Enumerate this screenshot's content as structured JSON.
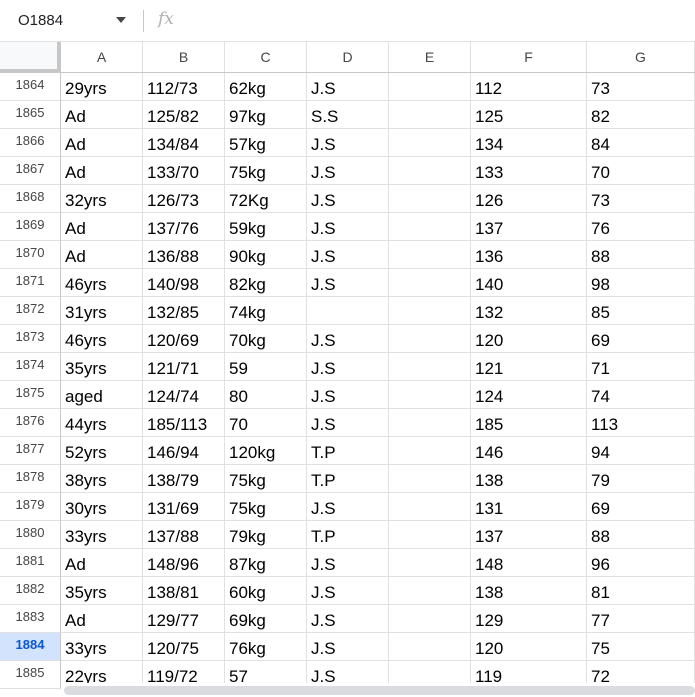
{
  "formula_bar": {
    "name_box": "O1884",
    "fx_label": "fx",
    "formula": ""
  },
  "columns": [
    "A",
    "B",
    "C",
    "D",
    "E",
    "F",
    "G"
  ],
  "selected_row": "1884",
  "rows": [
    {
      "n": "1864",
      "cells": [
        "29yrs",
        "112/73",
        "62kg",
        "J.S",
        "",
        "112",
        "73"
      ]
    },
    {
      "n": "1865",
      "cells": [
        "Ad",
        "125/82",
        "97kg",
        "S.S",
        "",
        "125",
        "82"
      ]
    },
    {
      "n": "1866",
      "cells": [
        "Ad",
        "134/84",
        "57kg",
        "J.S",
        "",
        "134",
        "84"
      ]
    },
    {
      "n": "1867",
      "cells": [
        "Ad",
        "133/70",
        "75kg",
        "J.S",
        "",
        "133",
        "70"
      ]
    },
    {
      "n": "1868",
      "cells": [
        "32yrs",
        "126/73",
        "72Kg",
        "J.S",
        "",
        "126",
        "73"
      ]
    },
    {
      "n": "1869",
      "cells": [
        "Ad",
        "137/76",
        "59kg",
        "J.S",
        "",
        "137",
        "76"
      ]
    },
    {
      "n": "1870",
      "cells": [
        "Ad",
        "136/88",
        "90kg",
        "J.S",
        "",
        "136",
        "88"
      ]
    },
    {
      "n": "1871",
      "cells": [
        "46yrs",
        "140/98",
        "82kg",
        "J.S",
        "",
        "140",
        "98"
      ]
    },
    {
      "n": "1872",
      "cells": [
        "31yrs",
        "132/85",
        "74kg",
        "",
        "",
        "132",
        "85"
      ]
    },
    {
      "n": "1873",
      "cells": [
        "46yrs",
        "120/69",
        "70kg",
        "J.S",
        "",
        "120",
        "69"
      ]
    },
    {
      "n": "1874",
      "cells": [
        "35yrs",
        "121/71",
        "59",
        "J.S",
        "",
        "121",
        "71"
      ]
    },
    {
      "n": "1875",
      "cells": [
        "aged",
        "124/74",
        "80",
        "J.S",
        "",
        "124",
        "74"
      ]
    },
    {
      "n": "1876",
      "cells": [
        "44yrs",
        "185/113",
        "70",
        "J.S",
        "",
        "185",
        "113"
      ]
    },
    {
      "n": "1877",
      "cells": [
        "52yrs",
        "146/94",
        "120kg",
        "T.P",
        "",
        "146",
        "94"
      ]
    },
    {
      "n": "1878",
      "cells": [
        "38yrs",
        "138/79",
        "75kg",
        "T.P",
        "",
        "138",
        "79"
      ]
    },
    {
      "n": "1879",
      "cells": [
        "30yrs",
        "131/69",
        "75kg",
        "J.S",
        "",
        "131",
        "69"
      ]
    },
    {
      "n": "1880",
      "cells": [
        "33yrs",
        "137/88",
        "79kg",
        "T.P",
        "",
        "137",
        "88"
      ]
    },
    {
      "n": "1881",
      "cells": [
        "Ad",
        "148/96",
        "87kg",
        "J.S",
        "",
        "148",
        "96"
      ]
    },
    {
      "n": "1882",
      "cells": [
        "35yrs",
        "138/81",
        "60kg",
        "J.S",
        "",
        "138",
        "81"
      ]
    },
    {
      "n": "1883",
      "cells": [
        "Ad",
        "129/77",
        "69kg",
        "J.S",
        "",
        "129",
        "77"
      ]
    },
    {
      "n": "1884",
      "cells": [
        "33yrs",
        "120/75",
        "76kg",
        "J.S",
        "",
        "120",
        "75"
      ]
    },
    {
      "n": "1885",
      "cells": [
        "22yrs",
        "119/72",
        "57",
        "J.S",
        "",
        "119",
        "72"
      ]
    }
  ],
  "colors": {
    "selected_row_header_bg": "#d3e3fd",
    "selected_row_header_text": "#0b57d0",
    "gridline": "#e1e1e1",
    "header_border": "#c7c7c7"
  }
}
